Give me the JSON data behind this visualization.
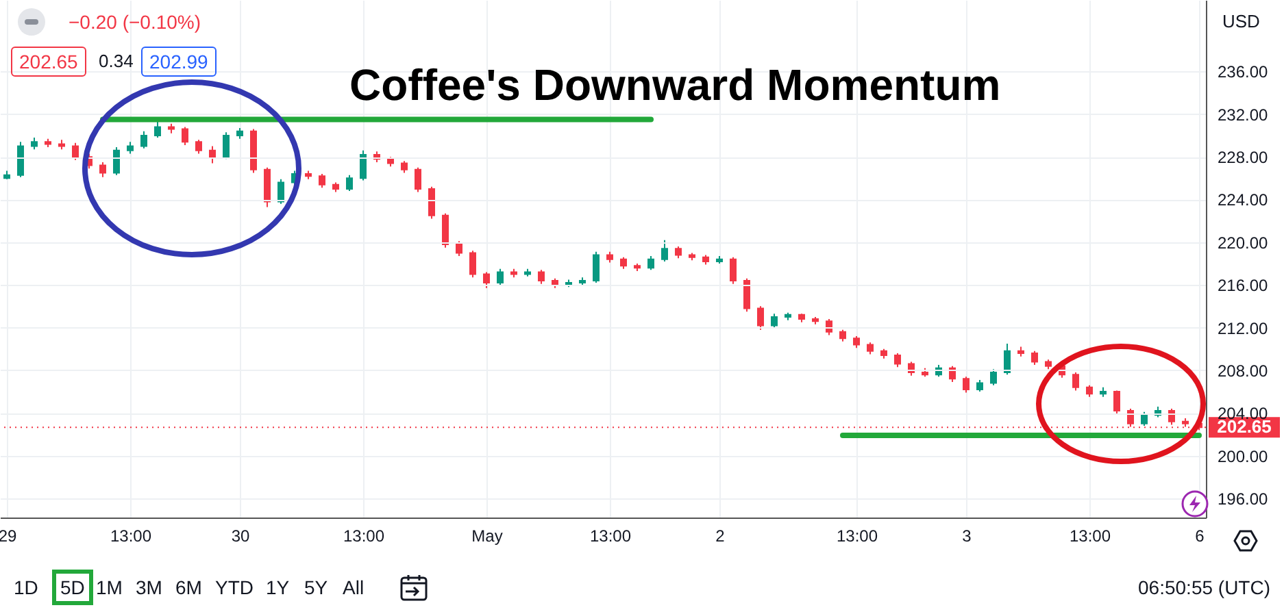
{
  "chart_data": {
    "type": "candlestick",
    "title": "Coffee's Downward Momentum",
    "categories": [
      "29",
      null,
      null,
      null,
      null,
      null,
      null,
      null,
      null,
      "13:00",
      null,
      null,
      null,
      null,
      null,
      null,
      null,
      "30",
      null,
      null,
      null,
      null,
      null,
      null,
      null,
      null,
      "13:00",
      null,
      null,
      null,
      null,
      null,
      null,
      null,
      null,
      "May",
      null,
      null,
      null,
      null,
      null,
      null,
      null,
      null,
      "13:00",
      null,
      null,
      null,
      null,
      null,
      null,
      null,
      "2",
      null,
      null,
      null,
      null,
      null,
      null,
      null,
      null,
      null,
      "13:00",
      null,
      null,
      null,
      null,
      null,
      null,
      null,
      "3",
      null,
      null,
      null,
      null,
      null,
      null,
      null,
      null,
      "13:00",
      null,
      null,
      null,
      null,
      null,
      null,
      null,
      "6"
    ],
    "ohlc": [
      [
        226.0,
        226.7,
        225.9,
        226.3
      ],
      [
        226.3,
        229.4,
        226.1,
        229.0
      ],
      [
        229.0,
        229.8,
        228.7,
        229.4
      ],
      [
        229.4,
        229.7,
        228.9,
        229.2
      ],
      [
        229.2,
        229.6,
        228.7,
        229.0
      ],
      [
        229.0,
        229.3,
        227.7,
        228.0
      ],
      [
        228.0,
        228.3,
        226.9,
        227.2
      ],
      [
        227.2,
        227.5,
        226.1,
        226.5
      ],
      [
        226.5,
        228.9,
        226.3,
        228.6
      ],
      [
        228.6,
        229.4,
        228.3,
        229.0
      ],
      [
        229.0,
        230.4,
        228.8,
        230.0
      ],
      [
        230.0,
        231.3,
        229.8,
        230.8
      ],
      [
        230.8,
        231.1,
        230.2,
        230.6
      ],
      [
        230.6,
        230.8,
        229.1,
        229.4
      ],
      [
        229.4,
        229.6,
        228.3,
        228.6
      ],
      [
        228.6,
        229.0,
        227.4,
        228.0
      ],
      [
        228.0,
        230.3,
        227.8,
        230.0
      ],
      [
        230.0,
        230.7,
        229.7,
        230.4
      ],
      [
        230.4,
        230.6,
        226.5,
        226.8
      ],
      [
        226.8,
        227.0,
        223.3,
        223.8
      ],
      [
        223.8,
        225.9,
        223.6,
        225.6
      ],
      [
        225.6,
        226.7,
        225.3,
        226.4
      ],
      [
        226.4,
        226.7,
        225.9,
        226.2
      ],
      [
        226.2,
        226.4,
        225.1,
        225.4
      ],
      [
        225.4,
        225.6,
        224.7,
        225.0
      ],
      [
        225.0,
        226.3,
        224.8,
        226.0
      ],
      [
        226.0,
        228.6,
        225.8,
        228.2
      ],
      [
        228.2,
        228.5,
        227.5,
        227.8
      ],
      [
        227.8,
        228.0,
        227.1,
        227.4
      ],
      [
        227.4,
        227.6,
        226.5,
        226.8
      ],
      [
        226.8,
        227.0,
        224.7,
        225.0
      ],
      [
        225.0,
        225.2,
        222.2,
        222.5
      ],
      [
        222.5,
        222.7,
        219.5,
        219.8
      ],
      [
        219.8,
        220.1,
        218.7,
        219.0
      ],
      [
        219.0,
        219.2,
        216.7,
        217.0
      ],
      [
        217.0,
        217.2,
        215.7,
        216.2
      ],
      [
        216.2,
        217.5,
        216.0,
        217.2
      ],
      [
        217.2,
        217.5,
        216.7,
        217.0
      ],
      [
        217.0,
        217.5,
        216.8,
        217.2
      ],
      [
        217.2,
        217.4,
        216.1,
        216.4
      ],
      [
        216.4,
        216.6,
        215.7,
        216.0
      ],
      [
        216.0,
        216.5,
        215.8,
        216.2
      ],
      [
        216.2,
        216.7,
        215.9,
        216.4
      ],
      [
        216.4,
        219.1,
        216.2,
        218.8
      ],
      [
        218.8,
        219.1,
        218.1,
        218.4
      ],
      [
        218.4,
        218.6,
        217.5,
        217.8
      ],
      [
        217.8,
        218.0,
        217.3,
        217.6
      ],
      [
        217.6,
        218.7,
        217.4,
        218.4
      ],
      [
        218.4,
        220.2,
        218.2,
        219.4
      ],
      [
        219.4,
        219.6,
        218.5,
        218.8
      ],
      [
        218.8,
        219.0,
        218.3,
        218.6
      ],
      [
        218.6,
        218.8,
        217.9,
        218.2
      ],
      [
        218.2,
        218.7,
        218.0,
        218.4
      ],
      [
        218.4,
        218.6,
        216.1,
        216.4
      ],
      [
        216.4,
        216.6,
        213.5,
        213.8
      ],
      [
        213.8,
        214.0,
        211.8,
        212.2
      ],
      [
        212.2,
        213.3,
        212.0,
        213.0
      ],
      [
        213.0,
        213.4,
        212.7,
        213.2
      ],
      [
        213.2,
        213.3,
        212.5,
        212.8
      ],
      [
        212.8,
        213.0,
        212.3,
        212.6
      ],
      [
        212.6,
        212.8,
        211.3,
        211.6
      ],
      [
        211.6,
        211.8,
        210.7,
        211.0
      ],
      [
        211.0,
        211.2,
        210.1,
        210.4
      ],
      [
        210.4,
        210.6,
        209.5,
        209.8
      ],
      [
        209.8,
        210.0,
        209.1,
        209.4
      ],
      [
        209.4,
        209.6,
        208.3,
        208.6
      ],
      [
        208.6,
        208.8,
        207.5,
        207.8
      ],
      [
        207.8,
        208.2,
        207.4,
        207.6
      ],
      [
        207.6,
        208.5,
        207.4,
        208.2
      ],
      [
        208.2,
        208.4,
        206.9,
        207.2
      ],
      [
        207.2,
        207.4,
        205.9,
        206.2
      ],
      [
        206.2,
        207.1,
        206.0,
        206.8
      ],
      [
        206.8,
        208.1,
        206.6,
        207.8
      ],
      [
        207.8,
        210.5,
        207.6,
        209.8
      ],
      [
        209.8,
        210.2,
        209.3,
        209.6
      ],
      [
        209.6,
        209.8,
        208.5,
        208.8
      ],
      [
        208.8,
        209.0,
        208.1,
        208.4
      ],
      [
        208.4,
        208.6,
        207.3,
        207.6
      ],
      [
        207.6,
        207.8,
        206.1,
        206.4
      ],
      [
        206.4,
        206.6,
        205.5,
        205.8
      ],
      [
        205.8,
        206.4,
        205.5,
        206.0
      ],
      [
        206.0,
        206.1,
        203.9,
        204.2
      ],
      [
        204.2,
        204.4,
        202.7,
        203.0
      ],
      [
        203.0,
        204.1,
        202.8,
        203.8
      ],
      [
        203.8,
        204.6,
        203.6,
        204.2
      ],
      [
        204.2,
        204.4,
        202.9,
        203.2
      ],
      [
        203.2,
        203.5,
        202.7,
        203.0
      ],
      [
        203.0,
        203.3,
        202.4,
        202.65
      ]
    ],
    "series": [
      {
        "type": "line",
        "color": "#22a83a",
        "values": [
          null,
          null,
          null,
          null,
          null,
          null,
          null,
          231.5,
          231.5,
          231.5,
          231.5,
          231.5,
          231.5,
          231.5,
          231.5,
          231.5,
          231.5,
          231.5,
          231.5,
          231.5,
          231.5,
          231.5,
          231.5,
          231.5,
          231.5,
          231.5,
          231.5,
          231.5,
          231.5,
          231.5,
          231.5,
          231.5,
          231.5,
          231.5,
          231.5,
          231.5,
          231.5,
          231.5,
          231.5,
          231.5,
          231.5,
          231.5,
          231.5,
          231.5,
          231.5,
          231.5,
          231.5,
          231.5,
          null,
          null,
          null,
          null,
          null,
          null,
          null,
          null,
          null,
          null,
          null,
          null,
          null,
          null,
          null,
          null,
          null,
          null,
          null,
          null,
          null,
          null,
          null,
          null,
          null,
          null,
          null,
          null,
          null,
          null,
          null,
          null,
          null,
          null,
          null,
          null,
          null,
          null,
          null,
          null
        ]
      },
      {
        "type": "line",
        "color": "#22a83a",
        "values": [
          null,
          null,
          null,
          null,
          null,
          null,
          null,
          null,
          null,
          null,
          null,
          null,
          null,
          null,
          null,
          null,
          null,
          null,
          null,
          null,
          null,
          null,
          null,
          null,
          null,
          null,
          null,
          null,
          null,
          null,
          null,
          null,
          null,
          null,
          null,
          null,
          null,
          null,
          null,
          null,
          null,
          null,
          null,
          null,
          null,
          null,
          null,
          null,
          null,
          null,
          null,
          null,
          null,
          null,
          null,
          null,
          null,
          null,
          null,
          null,
          null,
          201.9,
          201.9,
          201.9,
          201.9,
          201.9,
          201.9,
          201.9,
          201.9,
          201.9,
          201.9,
          201.9,
          201.9,
          201.9,
          201.9,
          201.9,
          201.9,
          201.9,
          201.9,
          201.9,
          201.9,
          201.9,
          201.9,
          201.9,
          201.9,
          201.9,
          201.9,
          201.9
        ]
      }
    ],
    "ylim": [
      194.2,
      242.7
    ],
    "yticks": [
      {
        "value": 196,
        "label": "196.00"
      },
      {
        "value": 200,
        "label": "200.00"
      },
      {
        "value": 204,
        "label": "204.00"
      },
      {
        "value": 208,
        "label": "208.00"
      },
      {
        "value": 212,
        "label": "212.00"
      },
      {
        "value": 216,
        "label": "216.00"
      },
      {
        "value": 220,
        "label": "220.00"
      },
      {
        "value": 224,
        "label": "224.00"
      },
      {
        "value": 228,
        "label": "228.00"
      },
      {
        "value": 232,
        "label": "232.00"
      },
      {
        "value": 236,
        "label": "236.00"
      }
    ],
    "grid": true,
    "ref_lines": [
      {
        "axis": "y",
        "value": 202.65,
        "label": "202.65",
        "color": "#f23645",
        "line_style": "dotted"
      }
    ],
    "annotations": [
      "−0.20 (−0.10%)",
      "202.65",
      "0.34",
      "202.99",
      "USD",
      "1D",
      "5D",
      "1M",
      "3M",
      "6M",
      "YTD",
      "1Y",
      "5Y",
      "All",
      "06:50:55 (UTC)"
    ]
  }
}
